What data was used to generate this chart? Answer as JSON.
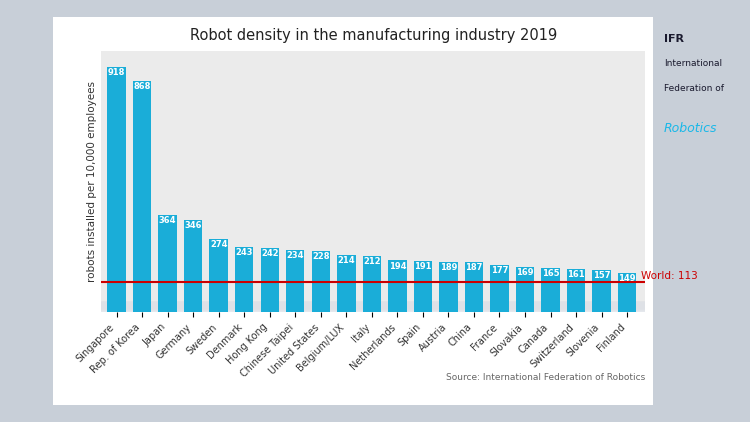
{
  "title": "Robot density in the manufacturing industry 2019",
  "ylabel": "robots installed per 10,000 employees",
  "source": "Source: International Federation of Robotics",
  "world_line": 113,
  "world_label": "World: 113",
  "categories": [
    "Singapore",
    "Rep. of Korea",
    "Japan",
    "Germany",
    "Sweden",
    "Denmark",
    "Hong Kong",
    "Chinese Taipei",
    "United States",
    "Belgium/LUX",
    "Italy",
    "Netherlands",
    "Spain",
    "Austria",
    "China",
    "France",
    "Slovakia",
    "Canada",
    "Switzerland",
    "Slovenia",
    "Finland"
  ],
  "values": [
    918,
    868,
    364,
    346,
    274,
    243,
    242,
    234,
    228,
    214,
    212,
    194,
    191,
    189,
    187,
    177,
    169,
    165,
    161,
    157,
    149
  ],
  "bar_color": "#1aadd8",
  "background_outer": "#c8cfd8",
  "background_inner": "#ffffff",
  "chart_bg_gradient_top": "#f0f0f0",
  "chart_bg_gradient_bottom": "#d8dde5",
  "title_fontsize": 10.5,
  "label_fontsize": 7,
  "value_fontsize": 6,
  "ylabel_fontsize": 7.5,
  "world_line_color": "#cc0000",
  "world_label_color": "#cc0000",
  "world_label_fontsize": 7.5,
  "source_fontsize": 6.5
}
